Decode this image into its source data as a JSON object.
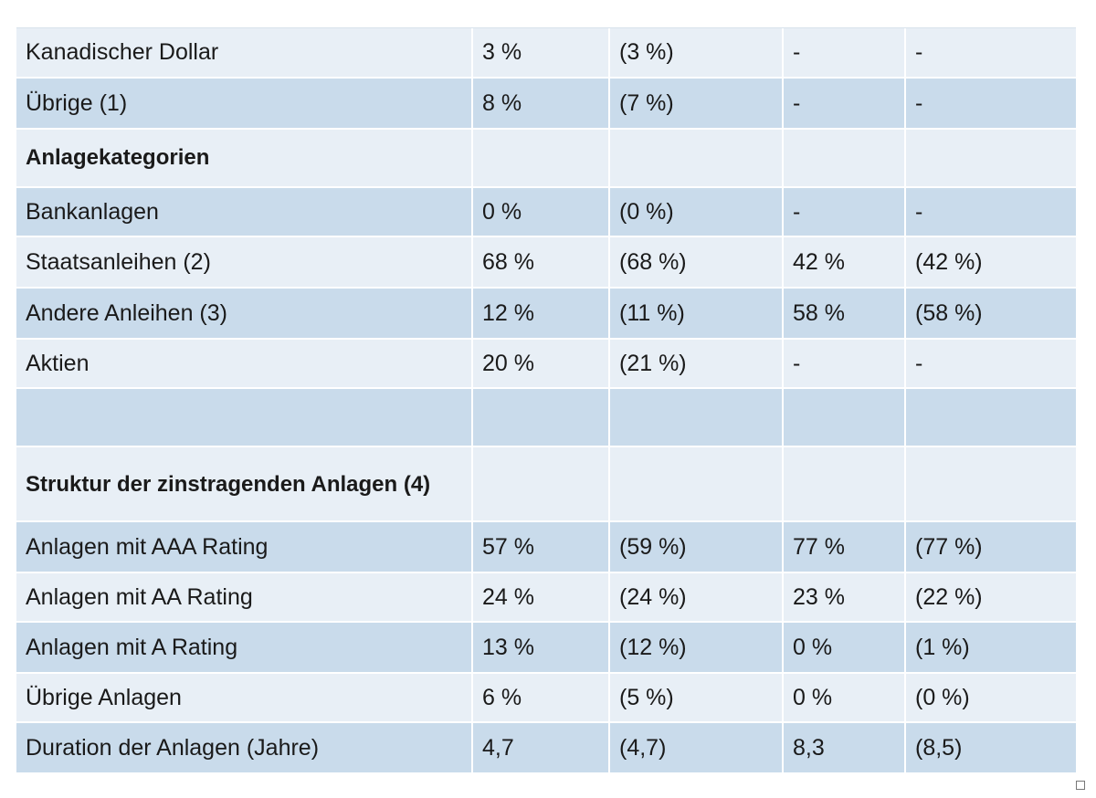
{
  "rows": [
    {
      "style": "light",
      "h": "h54",
      "label": "Kanadischer Dollar",
      "v1": "3 %",
      "v2": "(3 %)",
      "v3": "-",
      "v4": "-"
    },
    {
      "style": "dark",
      "h": "h56",
      "label": "Übrige (1)",
      "v1": "8 %",
      "v2": "(7 %)",
      "v3": "-",
      "v4": "-"
    },
    {
      "style": "light",
      "h": "h64",
      "label": "Anlagekategorien",
      "bold": true,
      "v1": "",
      "v2": "",
      "v3": "",
      "v4": ""
    },
    {
      "style": "dark",
      "h": "h54",
      "label": "Bankanlagen",
      "v1": "0 %",
      "v2": "(0 %)",
      "v3": "-",
      "v4": "-"
    },
    {
      "style": "light",
      "h": "h56",
      "label": "Staatsanleihen (2)",
      "v1": "68 %",
      "v2": "(68 %)",
      "v3": "42 %",
      "v4": "(42 %)"
    },
    {
      "style": "dark",
      "h": "h56",
      "label": "Andere Anleihen (3)",
      "v1": "12 %",
      "v2": "(11 %)",
      "v3": "58 %",
      "v4": "(58 %)"
    },
    {
      "style": "light",
      "h": "h54",
      "label": "Aktien",
      "v1": "20 %",
      "v2": "(21 %)",
      "v3": "-",
      "v4": "-"
    },
    {
      "style": "dark",
      "h": "h64",
      "label": "",
      "v1": "",
      "v2": "",
      "v3": "",
      "v4": ""
    },
    {
      "style": "light",
      "h": "h82",
      "label": "Struktur der zinstragenden Anlagen (4)",
      "bold": true,
      "wrap": true,
      "v1": "",
      "v2": "",
      "v3": "",
      "v4": ""
    },
    {
      "style": "dark",
      "h": "h56",
      "label": "Anlagen mit AAA Rating",
      "v1": "57 %",
      "v2": "(59 %)",
      "v3": "77 %",
      "v4": "(77 %)"
    },
    {
      "style": "light",
      "h": "h54",
      "label": "Anlagen mit AA Rating",
      "v1": "24 %",
      "v2": "(24 %)",
      "v3": "23 %",
      "v4": "(22 %)"
    },
    {
      "style": "dark",
      "h": "h56",
      "label": "Anlagen mit A Rating",
      "v1": "13 %",
      "v2": "(12 %)",
      "v3": "0 %",
      "v4": "(1 %)"
    },
    {
      "style": "light",
      "h": "h54",
      "label": "Übrige Anlagen",
      "v1": "6 %",
      "v2": "(5 %)",
      "v3": "0 %",
      "v4": "(0 %)"
    },
    {
      "style": "dark",
      "h": "h56",
      "label": "Duration der Anlagen (Jahre)",
      "v1": "4,7",
      "v2": "(4,7)",
      "v3": "8,3",
      "v4": "(8,5)"
    }
  ]
}
